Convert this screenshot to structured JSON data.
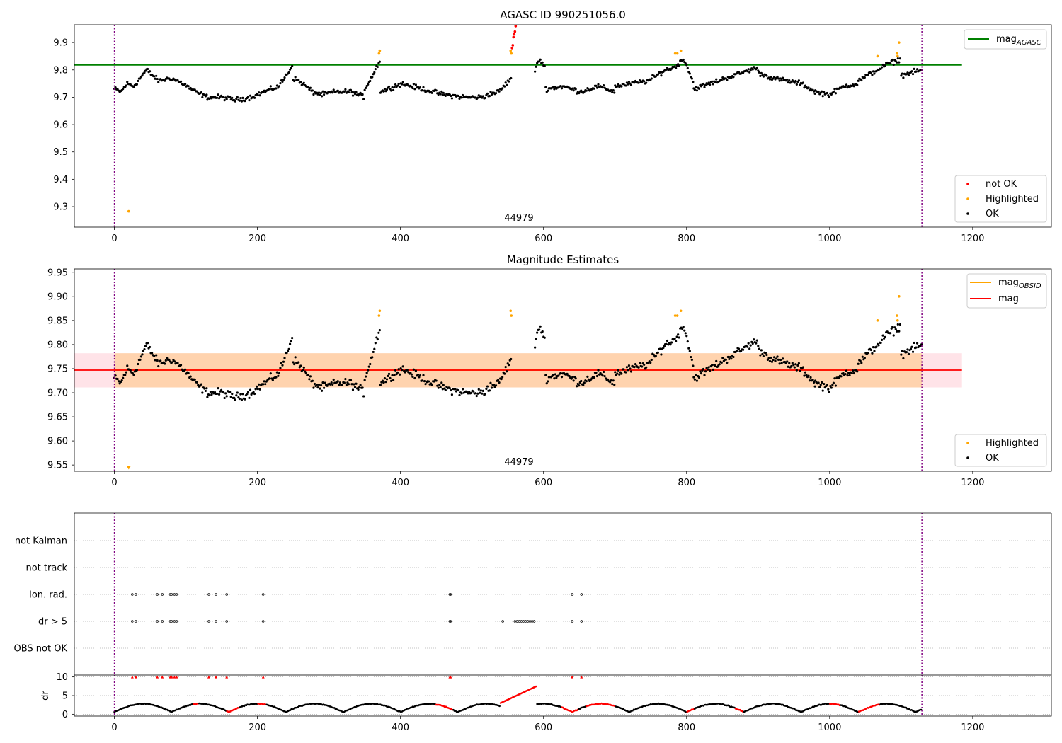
{
  "chart_data": [
    {
      "type": "scatter",
      "title": "AGASC ID 990251056.0",
      "xlim": [
        -56,
        1310
      ],
      "ylim": [
        9.225,
        9.965
      ],
      "xticks": [
        "0",
        "200",
        "400",
        "600",
        "800",
        "1000",
        "1200"
      ],
      "yticks": [
        "9.3",
        "9.4",
        "9.5",
        "9.6",
        "9.7",
        "9.8",
        "9.9"
      ],
      "annotation": "44979",
      "obsid_bounds": [
        0,
        1129
      ],
      "reference_lines": [
        {
          "name": "mag_{AGASC}",
          "y": 9.818,
          "x_range": [
            -56,
            1185
          ],
          "color": "#008000"
        }
      ],
      "legend_upper": {
        "position": "upper right",
        "entries": [
          "mag_{AGASC}"
        ]
      },
      "legend_lower": {
        "position": "lower right",
        "entries": [
          "not OK",
          "Highlighted",
          "OK"
        ]
      },
      "baseline_series": {
        "name": "OK",
        "color": "#000000",
        "segments": [
          {
            "x_start": 0,
            "x_end": 45,
            "y": [
              9.73,
              9.72,
              9.75,
              9.74,
              9.77,
              9.8
            ]
          },
          {
            "x_start": 45,
            "x_end": 130,
            "y": [
              9.8,
              9.76,
              9.77,
              9.75,
              9.72,
              9.7
            ]
          },
          {
            "x_start": 130,
            "x_end": 250,
            "y": [
              9.7,
              9.7,
              9.69,
              9.7,
              9.72,
              9.74,
              9.82
            ]
          },
          {
            "x_start": 250,
            "x_end": 290,
            "y": [
              9.77,
              9.75,
              9.72,
              9.71
            ]
          },
          {
            "x_start": 290,
            "x_end": 350,
            "y": [
              9.71,
              9.72,
              9.72,
              9.7
            ]
          },
          {
            "x_start": 350,
            "x_end": 372,
            "y": [
              9.73,
              9.78,
              9.84
            ]
          },
          {
            "x_start": 372,
            "x_end": 460,
            "y": [
              9.72,
              9.75,
              9.73,
              9.71
            ]
          },
          {
            "x_start": 460,
            "x_end": 520,
            "y": [
              9.71,
              9.7,
              9.7
            ]
          },
          {
            "x_start": 520,
            "x_end": 555,
            "y": [
              9.71,
              9.72,
              9.77
            ]
          },
          {
            "x_start": 588,
            "x_end": 602,
            "y": [
              9.8,
              9.84,
              9.81
            ]
          },
          {
            "x_start": 603,
            "x_end": 700,
            "y": [
              9.73,
              9.74,
              9.72,
              9.74,
              9.72
            ]
          },
          {
            "x_start": 700,
            "x_end": 770,
            "y": [
              9.74,
              9.75,
              9.76,
              9.8
            ]
          },
          {
            "x_start": 770,
            "x_end": 810,
            "y": [
              9.8,
              9.81,
              9.84,
              9.75
            ]
          },
          {
            "x_start": 810,
            "x_end": 900,
            "y": [
              9.73,
              9.75,
              9.77,
              9.79,
              9.81
            ]
          },
          {
            "x_start": 900,
            "x_end": 980,
            "y": [
              9.79,
              9.77,
              9.76,
              9.75,
              9.72
            ]
          },
          {
            "x_start": 980,
            "x_end": 1040,
            "y": [
              9.72,
              9.71,
              9.74,
              9.75
            ]
          },
          {
            "x_start": 1040,
            "x_end": 1100,
            "y": [
              9.76,
              9.79,
              9.82,
              9.84
            ]
          },
          {
            "x_start": 1100,
            "x_end": 1129,
            "y": [
              9.78,
              9.79,
              9.8
            ]
          }
        ],
        "x_step": 1.5,
        "scatter": 0.013
      },
      "highlighted_points": [
        {
          "x": 20,
          "y": 9.283
        },
        {
          "x": 370,
          "y": 9.86
        },
        {
          "x": 371,
          "y": 9.87
        },
        {
          "x": 554,
          "y": 9.87
        },
        {
          "x": 555,
          "y": 9.86
        },
        {
          "x": 784,
          "y": 9.86
        },
        {
          "x": 787,
          "y": 9.86
        },
        {
          "x": 792,
          "y": 9.87
        },
        {
          "x": 1067,
          "y": 9.85
        },
        {
          "x": 1094,
          "y": 9.86
        },
        {
          "x": 1095,
          "y": 9.85
        },
        {
          "x": 1097,
          "y": 9.9
        }
      ],
      "not_ok_points": [
        {
          "x": 556,
          "y": 9.88
        },
        {
          "x": 557,
          "y": 9.89
        },
        {
          "x": 558,
          "y": 9.92
        },
        {
          "x": 559,
          "y": 9.93
        },
        {
          "x": 560,
          "y": 9.94
        },
        {
          "x": 561,
          "y": 9.96
        }
      ]
    },
    {
      "type": "scatter",
      "title": "Magnitude Estimates",
      "xlim": [
        -56,
        1310
      ],
      "ylim": [
        9.537,
        9.957
      ],
      "xticks": [
        "0",
        "200",
        "400",
        "600",
        "800",
        "1000",
        "1200"
      ],
      "yticks": [
        "9.55",
        "9.60",
        "9.65",
        "9.70",
        "9.75",
        "9.80",
        "9.85",
        "9.90",
        "9.95"
      ],
      "annotation": "44979",
      "obsid_bounds": [
        0,
        1129
      ],
      "reference_lines": [
        {
          "name": "mag_{OBSID}",
          "y": 9.747,
          "x_range": [
            0,
            1129
          ],
          "color": "#ffa500"
        },
        {
          "name": "mag",
          "y": 9.747,
          "x_range": [
            -56,
            1185
          ],
          "color": "#ff0000"
        }
      ],
      "bands": [
        {
          "name": "mag band",
          "y_range": [
            9.711,
            9.782
          ],
          "x_range": [
            -56,
            1185
          ],
          "color": "#ffc0cb"
        },
        {
          "name": "mag_{OBSID} band",
          "y_range": [
            9.711,
            9.782
          ],
          "x_range": [
            0,
            1129
          ],
          "color": "#ffa500"
        }
      ],
      "legend_upper": {
        "position": "upper right",
        "entries": [
          "mag_{OBSID}",
          "mag"
        ]
      },
      "legend_lower": {
        "position": "lower right",
        "entries": [
          "Highlighted",
          "OK"
        ]
      },
      "lower_limit_marker": {
        "x": 20,
        "y": 9.545,
        "color": "#ffa500"
      }
    },
    {
      "type": "scatter",
      "title": "",
      "xlim": [
        -56,
        1310
      ],
      "categories": [
        "not Kalman",
        "not track",
        "Ion. rad.",
        "dr > 5",
        "OBS not OK"
      ],
      "flag_points": {
        "Ion. rad.": [
          25,
          30,
          60,
          67,
          78,
          80,
          84,
          87,
          132,
          142,
          157,
          208,
          469,
          470,
          640,
          653
        ],
        "dr > 5": [
          25,
          30,
          60,
          67,
          78,
          80,
          84,
          87,
          132,
          142,
          157,
          208,
          469,
          470,
          543,
          560,
          563,
          566,
          569,
          572,
          575,
          578,
          581,
          584,
          587,
          640,
          653
        ],
        "not Kalman": [],
        "not track": [],
        "OBS not OK": []
      },
      "obsid_bounds": [
        0,
        1129
      ]
    },
    {
      "type": "line",
      "title": "",
      "xlim": [
        -56,
        1310
      ],
      "ylim": [
        -0.5,
        10.5
      ],
      "ylabel": "dr",
      "xticks": [
        "0",
        "200",
        "400",
        "600",
        "800",
        "1000",
        "1200"
      ],
      "yticks": [
        "0",
        "5",
        "10"
      ],
      "dr_clip_markers_x": [
        25,
        30,
        60,
        67,
        78,
        80,
        84,
        87,
        132,
        142,
        157,
        208,
        469,
        470,
        640,
        653
      ],
      "dr_ranges": [
        {
          "x_start": 0,
          "x_end": 1129,
          "period": 80,
          "low": 0.6,
          "high": 2.8
        }
      ],
      "dr_red_ranges": [
        [
          110,
          118
        ],
        [
          157,
          175
        ],
        [
          200,
          212
        ],
        [
          450,
          473
        ],
        [
          540,
          590
        ],
        [
          625,
          648
        ],
        [
          660,
          700
        ],
        [
          800,
          810
        ],
        [
          868,
          880
        ],
        [
          1000,
          1015
        ],
        [
          1040,
          1070
        ]
      ],
      "obsid_bounds": [
        0,
        1129
      ]
    }
  ]
}
